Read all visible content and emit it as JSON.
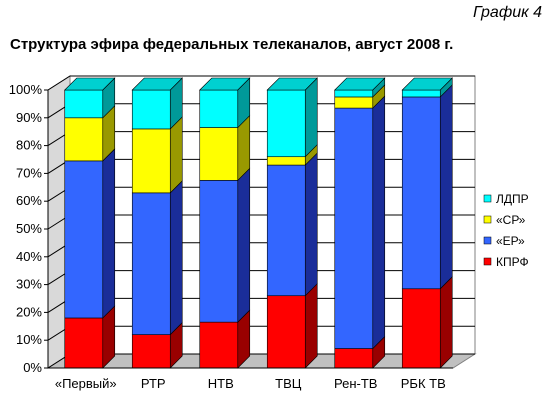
{
  "header": {
    "graph_label": "График 4",
    "title": "Структура эфира федеральных телеканалов, август 2008 г."
  },
  "chart_data": {
    "type": "bar",
    "stacked": true,
    "three_d": true,
    "categories": [
      "«Первый»",
      "РТР",
      "НТВ",
      "ТВЦ",
      "Рен-ТВ",
      "РБК ТВ"
    ],
    "series": [
      {
        "name": "КПРФ",
        "color": "#ff0000",
        "side": "#990000",
        "top": "#ff6666",
        "values": [
          18,
          12,
          16.5,
          26,
          7,
          28.5
        ]
      },
      {
        "name": "«ЕР»",
        "color": "#3366ff",
        "side": "#1a2d99",
        "top": "#6688ff",
        "values": [
          56.5,
          51,
          51,
          47,
          86.5,
          69
        ]
      },
      {
        "name": "«СР»",
        "color": "#ffff00",
        "side": "#999900",
        "top": "#ffff99",
        "values": [
          15.5,
          23,
          19,
          3,
          4,
          0
        ]
      },
      {
        "name": "ЛДПР",
        "color": "#00ffff",
        "side": "#009999",
        "top": "#00d0d0",
        "values": [
          10,
          14,
          13.5,
          24,
          2.5,
          2.5
        ]
      }
    ],
    "ylim": [
      0,
      100
    ],
    "yticks": [
      "0%",
      "10%",
      "20%",
      "30%",
      "40%",
      "50%",
      "60%",
      "70%",
      "80%",
      "90%",
      "100%"
    ],
    "legend_position": "right",
    "grid": true
  }
}
